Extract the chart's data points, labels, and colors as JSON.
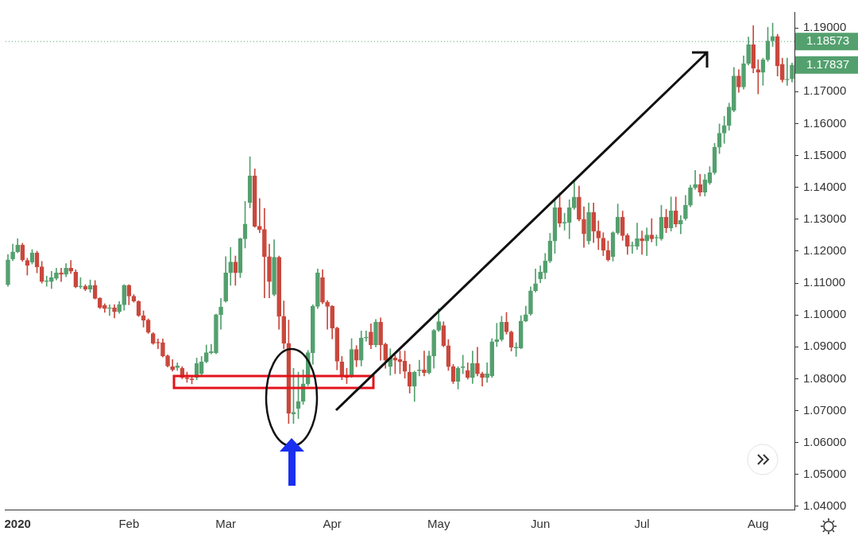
{
  "chart_data": {
    "type": "candlestick",
    "categories": [
      null,
      null,
      "2020",
      null,
      null,
      null,
      null,
      null,
      null,
      null,
      null,
      null,
      null,
      null,
      null,
      null,
      null,
      null,
      null,
      null,
      null,
      null,
      null,
      null,
      null,
      "Feb",
      null,
      null,
      null,
      null,
      null,
      null,
      null,
      null,
      null,
      null,
      null,
      null,
      null,
      null,
      null,
      null,
      null,
      null,
      null,
      "Mar",
      null,
      null,
      null,
      null,
      null,
      null,
      null,
      null,
      null,
      null,
      null,
      null,
      null,
      null,
      null,
      null,
      null,
      null,
      null,
      null,
      null,
      "Apr",
      null,
      null,
      null,
      null,
      null,
      null,
      null,
      null,
      null,
      null,
      null,
      null,
      null,
      null,
      null,
      null,
      null,
      null,
      null,
      null,
      null,
      "May",
      null,
      null,
      null,
      null,
      null,
      null,
      null,
      null,
      null,
      null,
      null,
      null,
      null,
      null,
      null,
      null,
      null,
      null,
      null,
      null,
      "Jun",
      null,
      null,
      null,
      null,
      null,
      null,
      null,
      null,
      null,
      null,
      null,
      null,
      null,
      null,
      null,
      null,
      null,
      null,
      null,
      null,
      "Jul",
      null,
      null,
      null,
      null,
      null,
      null,
      null,
      null,
      null,
      null,
      null,
      null,
      null,
      null,
      null,
      null,
      null,
      null,
      null,
      null,
      null,
      null,
      null,
      "Aug",
      null,
      null,
      null,
      null,
      null,
      null,
      null
    ],
    "ohlc": [
      [
        1.1095,
        1.119,
        1.109,
        1.1173
      ],
      [
        1.1176,
        1.1222,
        1.117,
        1.1198
      ],
      [
        1.1198,
        1.1239,
        1.1195,
        1.1219
      ],
      [
        1.1219,
        1.1225,
        1.1168,
        1.1173
      ],
      [
        1.1171,
        1.1178,
        1.1125,
        1.1156
      ],
      [
        1.1166,
        1.1205,
        1.116,
        1.1195
      ],
      [
        1.1195,
        1.12,
        1.1132,
        1.1151
      ],
      [
        1.1151,
        1.1168,
        1.11,
        1.1105
      ],
      [
        1.1105,
        1.1122,
        1.109,
        1.1107
      ],
      [
        1.1105,
        1.1137,
        1.1083,
        1.1117
      ],
      [
        1.1115,
        1.1147,
        1.111,
        1.1132
      ],
      [
        1.1132,
        1.1147,
        1.1105,
        1.1127
      ],
      [
        1.1127,
        1.1161,
        1.112,
        1.1147
      ],
      [
        1.1147,
        1.1171,
        1.113,
        1.1137
      ],
      [
        1.1134,
        1.1142,
        1.1085,
        1.1088
      ],
      [
        1.1088,
        1.1117,
        1.1083,
        1.109
      ],
      [
        1.109,
        1.1095,
        1.1076,
        1.1081
      ],
      [
        1.1081,
        1.111,
        1.1071,
        1.1093
      ],
      [
        1.1093,
        1.1108,
        1.105,
        1.1052
      ],
      [
        1.1052,
        1.1055,
        1.102,
        1.1023
      ],
      [
        1.103,
        1.1035,
        1.1008,
        1.102
      ],
      [
        1.102,
        1.1032,
        1.0998,
        1.1021
      ],
      [
        1.1023,
        1.1032,
        1.0991,
        1.101
      ],
      [
        1.101,
        1.1042,
        1.1005,
        1.1032
      ],
      [
        1.1032,
        1.1095,
        1.1015,
        1.1093
      ],
      [
        1.1093,
        1.1095,
        1.1032,
        1.1059
      ],
      [
        1.1059,
        1.1064,
        1.104,
        1.1044
      ],
      [
        1.1042,
        1.1045,
        1.0995,
        1.0998
      ],
      [
        1.0998,
        1.1013,
        1.0962,
        1.0984
      ],
      [
        1.0984,
        1.0988,
        1.0942,
        1.0945
      ],
      [
        1.0942,
        1.0945,
        1.0908,
        1.0911
      ],
      [
        1.0913,
        1.0925,
        1.0894,
        1.0912
      ],
      [
        1.0913,
        1.0925,
        1.0868,
        1.0872
      ],
      [
        1.0872,
        1.0875,
        1.0837,
        1.084
      ],
      [
        1.0838,
        1.086,
        1.0824,
        1.0828
      ],
      [
        1.0835,
        1.085,
        1.0826,
        1.084
      ],
      [
        1.0833,
        1.0838,
        1.08,
        1.0804
      ],
      [
        1.0804,
        1.0821,
        1.0789,
        1.08
      ],
      [
        1.08,
        1.0809,
        1.0784,
        1.0797
      ],
      [
        1.0804,
        1.0865,
        1.0797,
        1.0848
      ],
      [
        1.0816,
        1.087,
        1.0812,
        1.0853
      ],
      [
        1.0853,
        1.0906,
        1.085,
        1.0882
      ],
      [
        1.0882,
        1.0908,
        1.0878,
        1.0885
      ],
      [
        1.0882,
        1.1003,
        1.0878,
        1.1001
      ],
      [
        1.1001,
        1.1052,
        1.0955,
        1.1025
      ],
      [
        1.1044,
        1.1183,
        1.104,
        1.1132
      ],
      [
        1.1132,
        1.1212,
        1.1093,
        1.1166
      ],
      [
        1.1166,
        1.1185,
        1.1093,
        1.1132
      ],
      [
        1.1132,
        1.1241,
        1.1117,
        1.1239
      ],
      [
        1.1239,
        1.1356,
        1.121,
        1.1285
      ],
      [
        1.1353,
        1.1496,
        1.1336,
        1.1436
      ],
      [
        1.1436,
        1.1458,
        1.1275,
        1.1278
      ],
      [
        1.1278,
        1.1365,
        1.1258,
        1.1268
      ],
      [
        1.1268,
        1.1334,
        1.1054,
        1.1183
      ],
      [
        1.1183,
        1.1222,
        1.1054,
        1.1105
      ],
      [
        1.1064,
        1.1236,
        1.106,
        1.1181
      ],
      [
        1.1181,
        1.1185,
        1.0955,
        1.0996
      ],
      [
        1.0996,
        1.1044,
        1.0894,
        1.0911
      ],
      [
        1.0911,
        1.0984,
        1.066,
        1.0692
      ],
      [
        1.069,
        1.0833,
        1.066,
        1.0695
      ],
      [
        1.0707,
        1.0821,
        1.0675,
        1.0729
      ],
      [
        1.0729,
        1.0828,
        1.072,
        1.0784
      ],
      [
        1.0784,
        1.0889,
        1.0778,
        1.0882
      ],
      [
        1.0882,
        1.1032,
        1.0845,
        1.1027
      ],
      [
        1.1027,
        1.1144,
        1.102,
        1.1132
      ],
      [
        1.1117,
        1.1142,
        1.1035,
        1.104
      ],
      [
        1.104,
        1.1045,
        1.0955,
        1.1027
      ],
      [
        1.1027,
        1.103,
        1.0925,
        1.0959
      ],
      [
        1.0959,
        1.0962,
        1.0828,
        1.0855
      ],
      [
        1.0853,
        1.087,
        1.0797,
        1.0809
      ],
      [
        1.0811,
        1.0833,
        1.0785,
        1.0804
      ],
      [
        1.0809,
        1.0926,
        1.0804,
        1.0892
      ],
      [
        1.0892,
        1.0904,
        1.0838,
        1.0858
      ],
      [
        1.0858,
        1.095,
        1.084,
        1.0928
      ],
      [
        1.0928,
        1.095,
        1.0918,
        1.093
      ],
      [
        1.0947,
        1.0972,
        1.0894,
        1.0906
      ],
      [
        1.0906,
        1.0986,
        1.09,
        1.0977
      ],
      [
        1.0977,
        1.0991,
        1.0858,
        1.0906
      ],
      [
        1.0909,
        1.0912,
        1.0833,
        1.0858
      ],
      [
        1.0838,
        1.0894,
        1.0811,
        1.0867
      ],
      [
        1.0865,
        1.0874,
        1.0816,
        1.0858
      ],
      [
        1.086,
        1.0887,
        1.0816,
        1.0853
      ],
      [
        1.0855,
        1.0887,
        1.0802,
        1.0823
      ],
      [
        1.0821,
        1.0845,
        1.0755,
        1.0777
      ],
      [
        1.0777,
        1.0824,
        1.0729,
        1.0821
      ],
      [
        1.0825,
        1.0858,
        1.0809,
        1.0826
      ],
      [
        1.0828,
        1.0887,
        1.0809,
        1.0819
      ],
      [
        1.0819,
        1.0887,
        1.0815,
        1.0872
      ],
      [
        1.0872,
        1.0955,
        1.0833,
        1.0952
      ],
      [
        1.0952,
        1.102,
        1.0948,
        1.0979
      ],
      [
        1.0967,
        1.0979,
        1.09,
        1.0904
      ],
      [
        1.0904,
        1.0923,
        1.0826,
        1.0838
      ],
      [
        1.0838,
        1.0845,
        1.0785,
        1.0792
      ],
      [
        1.0792,
        1.0838,
        1.0768,
        1.0833
      ],
      [
        1.0835,
        1.0874,
        1.0816,
        1.0836
      ],
      [
        1.0826,
        1.085,
        1.0799,
        1.0804
      ],
      [
        1.0804,
        1.0887,
        1.0785,
        1.0848
      ],
      [
        1.0848,
        1.0899,
        1.0809,
        1.0816
      ],
      [
        1.0816,
        1.0821,
        1.0777,
        1.0804
      ],
      [
        1.0804,
        1.085,
        1.0789,
        1.0816
      ],
      [
        1.0809,
        1.0926,
        1.0804,
        1.0916
      ],
      [
        1.0916,
        1.0974,
        1.0901,
        1.0923
      ],
      [
        1.0923,
        1.0996,
        1.0918,
        1.0977
      ],
      [
        1.0977,
        1.1008,
        1.094,
        1.0947
      ],
      [
        1.0947,
        1.095,
        1.0887,
        1.0899
      ],
      [
        1.0897,
        1.0913,
        1.087,
        1.0898
      ],
      [
        1.0897,
        1.0998,
        1.0894,
        1.0981
      ],
      [
        1.0981,
        1.1028,
        1.0979,
        1.1001
      ],
      [
        1.1003,
        1.1088,
        1.0999,
        1.1076
      ],
      [
        1.1076,
        1.1144,
        1.1072,
        1.1098
      ],
      [
        1.1113,
        1.1154,
        1.1101,
        1.1135
      ],
      [
        1.1132,
        1.1193,
        1.1113,
        1.1169
      ],
      [
        1.1169,
        1.1256,
        1.1164,
        1.1232
      ],
      [
        1.1232,
        1.1361,
        1.1193,
        1.1336
      ],
      [
        1.1336,
        1.1382,
        1.1276,
        1.1288
      ],
      [
        1.1288,
        1.1319,
        1.1266,
        1.129
      ],
      [
        1.129,
        1.1361,
        1.1239,
        1.1336
      ],
      [
        1.1336,
        1.1421,
        1.1331,
        1.137
      ],
      [
        1.137,
        1.1404,
        1.1295,
        1.13
      ],
      [
        1.13,
        1.1339,
        1.1212,
        1.1254
      ],
      [
        1.1232,
        1.1351,
        1.1222,
        1.1322
      ],
      [
        1.1322,
        1.1351,
        1.1227,
        1.1263
      ],
      [
        1.1263,
        1.1295,
        1.1205,
        1.1241
      ],
      [
        1.1241,
        1.1258,
        1.1186,
        1.1203
      ],
      [
        1.1203,
        1.1232,
        1.1169,
        1.1173
      ],
      [
        1.1183,
        1.1261,
        1.1169,
        1.1258
      ],
      [
        1.1258,
        1.1348,
        1.1253,
        1.1307
      ],
      [
        1.1307,
        1.1326,
        1.1234,
        1.1249
      ],
      [
        1.1249,
        1.1255,
        1.119,
        1.1215
      ],
      [
        1.1216,
        1.1229,
        1.1193,
        1.1217
      ],
      [
        1.1215,
        1.1288,
        1.1205,
        1.1239
      ],
      [
        1.1239,
        1.1263,
        1.119,
        1.1232
      ],
      [
        1.1232,
        1.1273,
        1.1186,
        1.1251
      ],
      [
        1.1251,
        1.1302,
        1.1229,
        1.1239
      ],
      [
        1.1241,
        1.1251,
        1.1217,
        1.1242
      ],
      [
        1.1239,
        1.1344,
        1.1234,
        1.1307
      ],
      [
        1.1307,
        1.1331,
        1.1258,
        1.1273
      ],
      [
        1.1273,
        1.137,
        1.1263,
        1.1326
      ],
      [
        1.1326,
        1.137,
        1.1276,
        1.1285
      ],
      [
        1.1285,
        1.1312,
        1.1254,
        1.1297
      ],
      [
        1.1302,
        1.1375,
        1.1297,
        1.1344
      ],
      [
        1.1344,
        1.1407,
        1.1339,
        1.1399
      ],
      [
        1.1399,
        1.1453,
        1.1394,
        1.1409
      ],
      [
        1.1409,
        1.1441,
        1.1373,
        1.1385
      ],
      [
        1.1385,
        1.1441,
        1.1373,
        1.1424
      ],
      [
        1.1414,
        1.1465,
        1.1409,
        1.1446
      ],
      [
        1.1446,
        1.1538,
        1.1441,
        1.1526
      ],
      [
        1.1526,
        1.1599,
        1.1506,
        1.157
      ],
      [
        1.157,
        1.1623,
        1.1538,
        1.1594
      ],
      [
        1.1594,
        1.1664,
        1.1579,
        1.1652
      ],
      [
        1.1642,
        1.1776,
        1.1637,
        1.1749
      ],
      [
        1.1749,
        1.1769,
        1.1698,
        1.1715
      ],
      [
        1.1715,
        1.1812,
        1.1708,
        1.1788
      ],
      [
        1.1788,
        1.1871,
        1.1783,
        1.1847
      ],
      [
        1.1847,
        1.1907,
        1.1759,
        1.1774
      ],
      [
        1.1769,
        1.18,
        1.1693,
        1.1761
      ],
      [
        1.1761,
        1.1805,
        1.172,
        1.18
      ],
      [
        1.18,
        1.1902,
        1.1795,
        1.1859
      ],
      [
        1.1859,
        1.1915,
        1.1842,
        1.1873
      ],
      [
        1.1873,
        1.188,
        1.1749,
        1.1781
      ],
      [
        1.1786,
        1.1805,
        1.173,
        1.1737
      ],
      [
        1.1737,
        1.1805,
        1.172,
        1.1738
      ],
      [
        1.174,
        1.179,
        1.173,
        1.17837
      ]
    ],
    "colors": [
      "#53a06e",
      "#53a06e",
      "#53a06e",
      "#c9483d",
      "#c9483d",
      "#53a06e",
      "#c9483d",
      "#c9483d",
      "#53a06e",
      "#53a06e",
      "#53a06e",
      "#c9483d",
      "#53a06e",
      "#c9483d",
      "#c9483d",
      "#53a06e",
      "#c9483d",
      "#53a06e",
      "#c9483d",
      "#c9483d",
      "#c9483d",
      "#53a06e",
      "#c9483d",
      "#53a06e",
      "#53a06e",
      "#c9483d",
      "#c9483d",
      "#c9483d",
      "#c9483d",
      "#c9483d",
      "#c9483d",
      "#c9483d",
      "#c9483d",
      "#c9483d",
      "#c9483d",
      "#53a06e",
      "#c9483d",
      "#c9483d",
      "#c9483d",
      "#53a06e",
      "#53a06e",
      "#53a06e",
      "#53a06e",
      "#53a06e",
      "#53a06e",
      "#53a06e",
      "#53a06e",
      "#c9483d",
      "#53a06e",
      "#53a06e",
      "#53a06e",
      "#c9483d",
      "#c9483d",
      "#c9483d",
      "#c9483d",
      "#53a06e",
      "#c9483d",
      "#c9483d",
      "#c9483d",
      "#53a06e",
      "#53a06e",
      "#53a06e",
      "#53a06e",
      "#53a06e",
      "#53a06e",
      "#c9483d",
      "#c9483d",
      "#c9483d",
      "#c9483d",
      "#c9483d",
      "#c9483d",
      "#53a06e",
      "#c9483d",
      "#53a06e",
      "#53a06e",
      "#c9483d",
      "#53a06e",
      "#c9483d",
      "#c9483d",
      "#53a06e",
      "#c9483d",
      "#c9483d",
      "#c9483d",
      "#c9483d",
      "#53a06e",
      "#53a06e",
      "#c9483d",
      "#53a06e",
      "#53a06e",
      "#53a06e",
      "#c9483d",
      "#c9483d",
      "#c9483d",
      "#53a06e",
      "#53a06e",
      "#c9483d",
      "#53a06e",
      "#c9483d",
      "#c9483d",
      "#53a06e",
      "#53a06e",
      "#53a06e",
      "#53a06e",
      "#c9483d",
      "#c9483d",
      "#53a06e",
      "#53a06e",
      "#53a06e",
      "#53a06e",
      "#53a06e",
      "#53a06e",
      "#53a06e",
      "#53a06e",
      "#53a06e",
      "#c9483d",
      "#53a06e",
      "#53a06e",
      "#53a06e",
      "#c9483d",
      "#c9483d",
      "#53a06e",
      "#c9483d",
      "#c9483d",
      "#c9483d",
      "#c9483d",
      "#53a06e",
      "#53a06e",
      "#c9483d",
      "#c9483d",
      "#53a06e",
      "#53a06e",
      "#c9483d",
      "#53a06e",
      "#c9483d",
      "#53a06e",
      "#53a06e",
      "#c9483d",
      "#53a06e",
      "#c9483d",
      "#53a06e",
      "#53a06e",
      "#53a06e",
      "#53a06e",
      "#c9483d",
      "#53a06e",
      "#53a06e",
      "#53a06e",
      "#53a06e",
      "#53a06e",
      "#53a06e",
      "#53a06e",
      "#c9483d",
      "#53a06e",
      "#53a06e",
      "#c9483d",
      "#c9483d",
      "#53a06e",
      "#53a06e",
      "#53a06e",
      "#c9483d",
      "#c9483d",
      "#53a06e",
      "#53a06e"
    ],
    "ylim": [
      1.039,
      1.195
    ],
    "yticks": [
      {
        "value": 1.04,
        "label": "1.04000"
      },
      {
        "value": 1.05,
        "label": "1.05000"
      },
      {
        "value": 1.06,
        "label": "1.06000"
      },
      {
        "value": 1.07,
        "label": "1.07000"
      },
      {
        "value": 1.08,
        "label": "1.08000"
      },
      {
        "value": 1.09,
        "label": "1.09000"
      },
      {
        "value": 1.1,
        "label": "1.10000"
      },
      {
        "value": 1.11,
        "label": "1.11000"
      },
      {
        "value": 1.12,
        "label": "1.12000"
      },
      {
        "value": 1.13,
        "label": "1.13000"
      },
      {
        "value": 1.14,
        "label": "1.14000"
      },
      {
        "value": 1.15,
        "label": "1.15000"
      },
      {
        "value": 1.16,
        "label": "1.16000"
      },
      {
        "value": 1.17,
        "label": "1.17000"
      },
      {
        "value": 1.19,
        "label": "1.19000"
      }
    ],
    "ref_lines": [
      {
        "axis": "y",
        "value": 1.18573,
        "label": "1.18573",
        "color": "#53a06e",
        "line_style": "dotted"
      }
    ],
    "annotations": [
      "1.17837"
    ]
  }
}
